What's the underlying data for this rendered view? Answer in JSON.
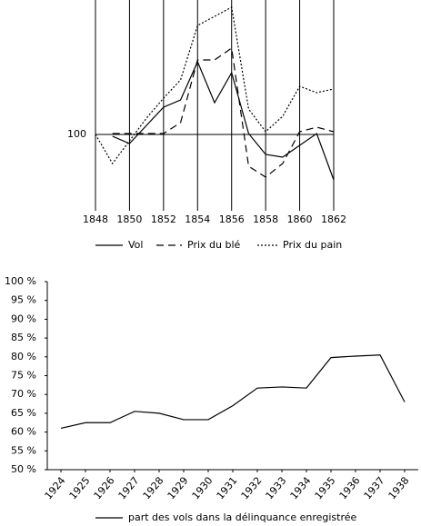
{
  "chart_data": [
    {
      "type": "line",
      "x": [
        1848,
        1849,
        1850,
        1851,
        1852,
        1853,
        1854,
        1855,
        1856,
        1857,
        1858,
        1859,
        1860,
        1861,
        1862
      ],
      "xlim": [
        1848,
        1862
      ],
      "xticks": [
        1848,
        1850,
        1852,
        1854,
        1856,
        1858,
        1860,
        1862
      ],
      "ylim": [
        58,
        174
      ],
      "yticks": [
        100
      ],
      "grid": true,
      "series": [
        {
          "name": "Vol",
          "color": "#000000",
          "linestyle": "solid",
          "values": [
            null,
            99,
            95,
            105,
            115,
            119,
            140,
            117.5,
            134,
            100.5,
            89,
            87.5,
            94,
            100.5,
            75
          ]
        },
        {
          "name": "Prix du blé",
          "color": "#000000",
          "linestyle": "dashed",
          "values": [
            null,
            100.5,
            100.5,
            100.5,
            100.5,
            106.5,
            141,
            141,
            147.5,
            82.5,
            76.5,
            84,
            101.5,
            104,
            101.5
          ]
        },
        {
          "name": "Prix du pain",
          "color": "#000000",
          "linestyle": "dotted",
          "values": [
            100,
            84,
            96.5,
            109,
            120,
            130,
            160,
            165,
            170,
            114,
            101.5,
            110,
            126.5,
            123,
            125
          ]
        }
      ]
    },
    {
      "type": "line",
      "categories": [
        "1924",
        "1925",
        "1926",
        "1927",
        "1928",
        "1929",
        "1930",
        "1931",
        "1932",
        "1933",
        "1934",
        "1935",
        "1936",
        "1937",
        "1938"
      ],
      "ylim": [
        50,
        100
      ],
      "yticks": [
        {
          "value": 50,
          "label": "50 %"
        },
        {
          "value": 55,
          "label": "55 %"
        },
        {
          "value": 60,
          "label": "60 %"
        },
        {
          "value": 65,
          "label": "65 %"
        },
        {
          "value": 70,
          "label": "70 %"
        },
        {
          "value": 75,
          "label": "75 %"
        },
        {
          "value": 80,
          "label": "80 %"
        },
        {
          "value": 85,
          "label": "85 %"
        },
        {
          "value": 90,
          "label": "90 %"
        },
        {
          "value": 95,
          "label": "95 %"
        },
        {
          "value": 100,
          "label": "100 %"
        }
      ],
      "grid": false,
      "series": [
        {
          "name": "part des vols dans la délinquance enregistrée",
          "color": "#000000",
          "linestyle": "solid",
          "values": [
            61,
            62.5,
            62.5,
            65.5,
            65,
            63.3,
            63.3,
            67,
            71.7,
            72,
            71.7,
            79.8,
            80.2,
            80.5,
            68
          ]
        }
      ]
    }
  ]
}
